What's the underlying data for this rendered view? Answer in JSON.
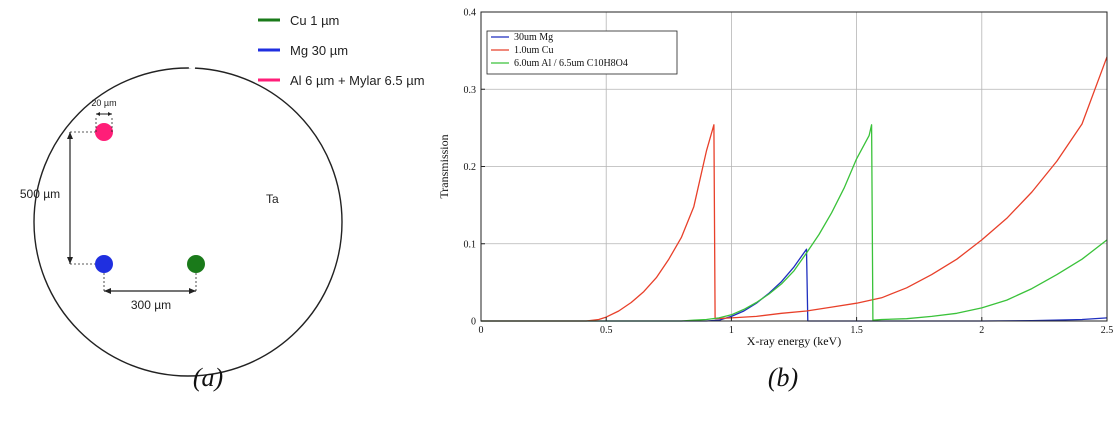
{
  "panel_a": {
    "caption": "(a)",
    "legend": [
      {
        "label": "Cu 1 µm",
        "color": "#1a7a1a"
      },
      {
        "label": "Mg 30 µm",
        "color": "#1f2fe0"
      },
      {
        "label": "Al 6 µm + Mylar 6.5 µm",
        "color": "#ff1e78"
      }
    ],
    "dimensions": {
      "hole_diameter": "20 µm",
      "vertical_spacing": "500 µm",
      "horizontal_spacing": "300 µm"
    },
    "material_label": "Ta",
    "holes": [
      {
        "name": "al-mylar",
        "color": "#ff1e78"
      },
      {
        "name": "mg",
        "color": "#1f2fe0"
      },
      {
        "name": "cu",
        "color": "#1a7a1a"
      }
    ]
  },
  "panel_b": {
    "caption": "(b)"
  },
  "chart_data": {
    "type": "line",
    "xlabel": "X-ray energy (keV)",
    "ylabel": "Transmission",
    "xlim": [
      0,
      2.5
    ],
    "ylim": [
      0,
      0.4
    ],
    "xticks": [
      0,
      0.5,
      1,
      1.5,
      2,
      2.5
    ],
    "xtick_labels": [
      "0",
      "0.5",
      "1",
      "1.5",
      "2",
      "2.5"
    ],
    "yticks": [
      0,
      0.1,
      0.2,
      0.3,
      0.4
    ],
    "ytick_labels": [
      "0",
      "0.1",
      "0.2",
      "0.3",
      "0.4"
    ],
    "grid": true,
    "legend_position": "top-left",
    "series": [
      {
        "name": "30um Mg",
        "color": "#1f2fbf",
        "points": [
          [
            0,
            0
          ],
          [
            0.9,
            0
          ],
          [
            0.95,
            0.001
          ],
          [
            1.0,
            0.006
          ],
          [
            1.05,
            0.013
          ],
          [
            1.1,
            0.023
          ],
          [
            1.15,
            0.036
          ],
          [
            1.2,
            0.051
          ],
          [
            1.25,
            0.07
          ],
          [
            1.3,
            0.093
          ],
          [
            1.305,
            0
          ],
          [
            1.5,
            0
          ],
          [
            2.0,
            0
          ],
          [
            2.2,
            0.0005
          ],
          [
            2.4,
            0.002
          ],
          [
            2.5,
            0.004
          ]
        ]
      },
      {
        "name": "1.0um Cu",
        "color": "#e8402a",
        "points": [
          [
            0,
            0
          ],
          [
            0.42,
            0
          ],
          [
            0.47,
            0.002
          ],
          [
            0.5,
            0.005
          ],
          [
            0.55,
            0.013
          ],
          [
            0.6,
            0.024
          ],
          [
            0.65,
            0.038
          ],
          [
            0.7,
            0.056
          ],
          [
            0.75,
            0.08
          ],
          [
            0.8,
            0.108
          ],
          [
            0.85,
            0.148
          ],
          [
            0.9,
            0.22
          ],
          [
            0.93,
            0.254
          ],
          [
            0.935,
            0.003
          ],
          [
            1.0,
            0.004
          ],
          [
            1.1,
            0.006
          ],
          [
            1.2,
            0.01
          ],
          [
            1.3,
            0.013
          ],
          [
            1.4,
            0.018
          ],
          [
            1.5,
            0.023
          ],
          [
            1.6,
            0.03
          ],
          [
            1.7,
            0.043
          ],
          [
            1.8,
            0.06
          ],
          [
            1.9,
            0.08
          ],
          [
            2.0,
            0.105
          ],
          [
            2.1,
            0.133
          ],
          [
            2.2,
            0.167
          ],
          [
            2.3,
            0.207
          ],
          [
            2.4,
            0.255
          ],
          [
            2.5,
            0.342
          ]
        ]
      },
      {
        "name": "6.0um Al / 6.5um C10H8O4",
        "color": "#3ac23a",
        "points": [
          [
            0,
            0
          ],
          [
            0.8,
            0
          ],
          [
            0.85,
            0.001
          ],
          [
            0.9,
            0.002
          ],
          [
            0.95,
            0.004
          ],
          [
            1.0,
            0.008
          ],
          [
            1.05,
            0.015
          ],
          [
            1.1,
            0.024
          ],
          [
            1.15,
            0.035
          ],
          [
            1.2,
            0.048
          ],
          [
            1.25,
            0.065
          ],
          [
            1.3,
            0.088
          ],
          [
            1.35,
            0.112
          ],
          [
            1.4,
            0.14
          ],
          [
            1.45,
            0.172
          ],
          [
            1.5,
            0.21
          ],
          [
            1.55,
            0.24
          ],
          [
            1.56,
            0.254
          ],
          [
            1.565,
            0.001
          ],
          [
            1.6,
            0.002
          ],
          [
            1.7,
            0.003
          ],
          [
            1.8,
            0.006
          ],
          [
            1.9,
            0.01
          ],
          [
            2.0,
            0.017
          ],
          [
            2.1,
            0.027
          ],
          [
            2.2,
            0.042
          ],
          [
            2.3,
            0.06
          ],
          [
            2.4,
            0.08
          ],
          [
            2.5,
            0.105
          ]
        ]
      }
    ]
  }
}
